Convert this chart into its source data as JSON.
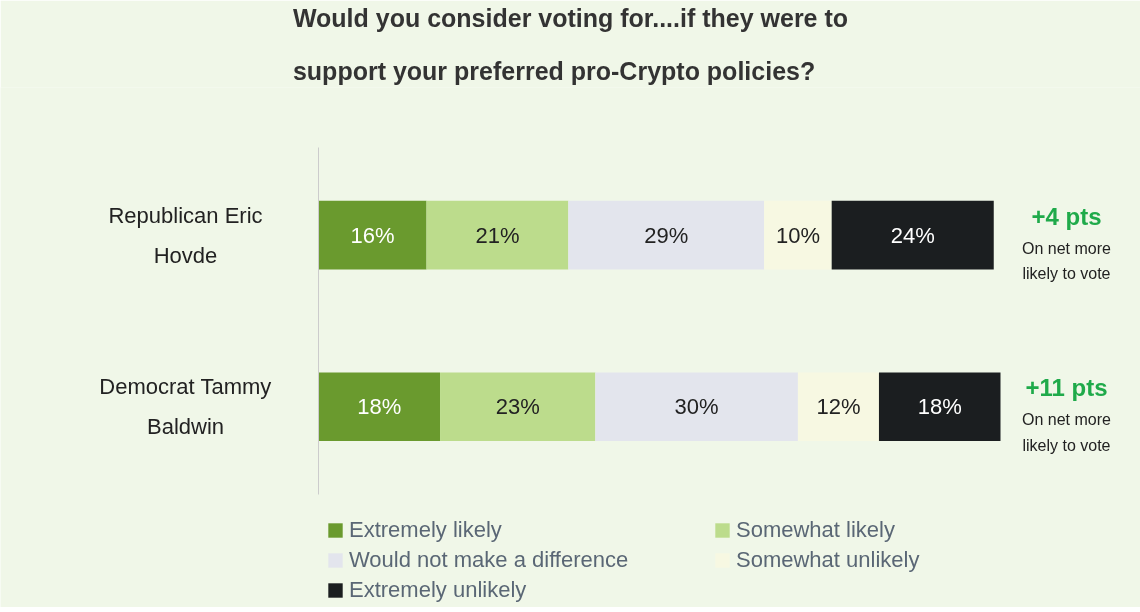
{
  "chart_data": {
    "type": "bar",
    "orientation": "horizontal",
    "stacked": true,
    "title": "Would you consider voting for....if they were to\nsupport your preferred pro-Crypto policies?",
    "categories": [
      "Republican Eric Hovde",
      "Democrat Tammy Baldwin"
    ],
    "series": [
      {
        "name": "Extremely likely",
        "color": "#6a9a2e",
        "values": [
          16,
          18
        ],
        "value_labels": [
          "16%",
          "18%"
        ]
      },
      {
        "name": "Somewhat likely",
        "color": "#bcdc8c",
        "values": [
          21,
          23
        ],
        "value_labels": [
          "21%",
          "23%"
        ]
      },
      {
        "name": "Would not make a difference",
        "color": "#e3e5ed",
        "values": [
          29,
          30
        ],
        "value_labels": [
          "29%",
          "30%"
        ]
      },
      {
        "name": "Somewhat unlikely",
        "color": "#f7f8e2",
        "values": [
          10,
          12
        ],
        "value_labels": [
          "10%",
          "12%"
        ]
      },
      {
        "name": "Extremely unlikely",
        "color": "#1b1e20",
        "values": [
          24,
          18
        ],
        "value_labels": [
          "24%",
          "18%"
        ]
      }
    ],
    "tick_labels": "y",
    "grid": false,
    "legend": "bottom",
    "annotations": [
      "+4 pts",
      "On net more\nlikely to vote",
      "+11 pts",
      "On net more\nlikely to vote"
    ]
  }
}
